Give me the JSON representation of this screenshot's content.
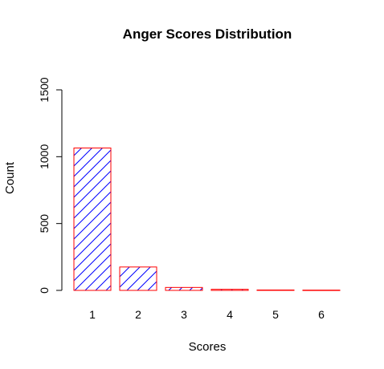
{
  "chart_data": {
    "type": "bar",
    "title": "Anger Scores Distribution",
    "xlabel": "Scores",
    "ylabel": "Count",
    "categories": [
      "1",
      "2",
      "3",
      "4",
      "5",
      "6"
    ],
    "values": [
      1065,
      175,
      22,
      8,
      3,
      2
    ],
    "ylim": [
      0,
      1500
    ],
    "yticks": [
      "0",
      "500",
      "1000",
      "1500"
    ],
    "grid": false,
    "legend": false,
    "bar_fill": "hatched diagonal",
    "colors": {
      "hatch": "#0000ff",
      "border": "#ff0000",
      "axis": "#000000"
    }
  }
}
